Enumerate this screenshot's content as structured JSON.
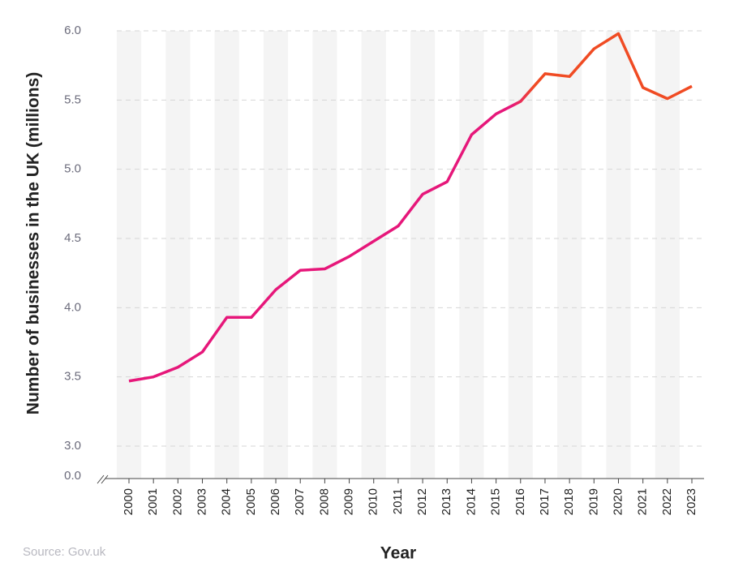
{
  "chart_data": {
    "type": "line",
    "y_label": "Number of businesses in the UK (millions)",
    "x_label": "Year",
    "source": "Source: Gov.uk",
    "categories": [
      "2000",
      "2001",
      "2002",
      "2003",
      "2004",
      "2005",
      "2006",
      "2007",
      "2008",
      "2009",
      "2010",
      "2011",
      "2012",
      "2013",
      "2014",
      "2015",
      "2016",
      "2017",
      "2018",
      "2019",
      "2020",
      "2021",
      "2022",
      "2023"
    ],
    "series": [
      {
        "colors": [
          "#e6177a",
          "#f04b23"
        ],
        "values": [
          3.47,
          3.5,
          3.57,
          3.68,
          3.93,
          3.93,
          4.13,
          4.27,
          4.28,
          4.37,
          4.48,
          4.59,
          4.82,
          4.91,
          5.25,
          5.4,
          5.49,
          5.69,
          5.67,
          5.87,
          5.98,
          5.59,
          5.51,
          5.6
        ]
      }
    ],
    "ylim": [
      3.0,
      6.0
    ],
    "yticks": [
      {
        "value": 0,
        "label": "0.0"
      },
      {
        "value": 3,
        "label": "3.0"
      },
      {
        "value": 3.5,
        "label": "3.5"
      },
      {
        "value": 4,
        "label": "4.0"
      },
      {
        "value": 4.5,
        "label": "4.5"
      },
      {
        "value": 5,
        "label": "5.0"
      },
      {
        "value": 5.5,
        "label": "5.5"
      },
      {
        "value": 6,
        "label": "6.0"
      }
    ],
    "axis_break": true,
    "grid": true,
    "band_color": "#f4f4f4"
  }
}
